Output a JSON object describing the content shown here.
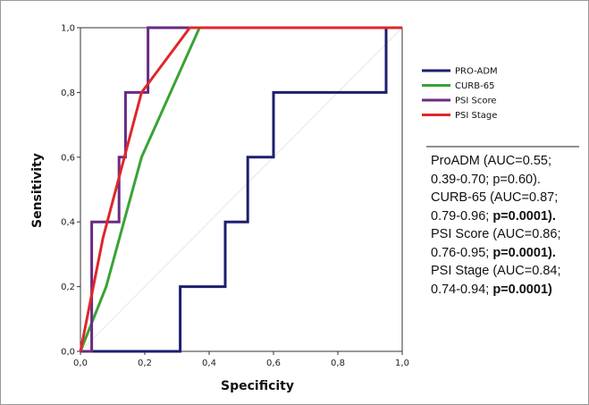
{
  "chart_data": {
    "type": "line",
    "xlabel": "Specificity",
    "ylabel": "Sensitivity",
    "xlim": [
      0,
      1
    ],
    "ylim": [
      0,
      1
    ],
    "ticks": [
      "0,0",
      "0,2",
      "0,4",
      "0,6",
      "0,8",
      "1,0"
    ],
    "legend_position": "right",
    "series": [
      {
        "name": "PRO-ADM",
        "color": "#1c1f6e",
        "x": [
          0,
          0.31,
          0.31,
          0.45,
          0.45,
          0.52,
          0.52,
          0.6,
          0.6,
          0.62,
          0.62,
          0.95,
          0.95,
          1.0
        ],
        "y": [
          0,
          0,
          0.2,
          0.2,
          0.4,
          0.4,
          0.6,
          0.6,
          0.8,
          0.8,
          0.8,
          0.8,
          1.0,
          1.0
        ]
      },
      {
        "name": "CURB-65",
        "color": "#3aa335",
        "x": [
          0,
          0.08,
          0.19,
          0.37,
          1.0
        ],
        "y": [
          0,
          0.2,
          0.6,
          1.0,
          1.0
        ]
      },
      {
        "name": "PSI Score",
        "color": "#6a2a82",
        "x": [
          0,
          0.035,
          0.035,
          0.12,
          0.12,
          0.14,
          0.14,
          0.2,
          0.2,
          0.21,
          0.21,
          1.0
        ],
        "y": [
          0,
          0,
          0.4,
          0.4,
          0.6,
          0.6,
          0.8,
          0.8,
          0.8,
          0.8,
          1.0,
          1.0
        ]
      },
      {
        "name": "PSI Stage",
        "color": "#e0262b",
        "x": [
          0,
          0.07,
          0.19,
          0.34,
          1.0
        ],
        "y": [
          0,
          0.35,
          0.8,
          1.0,
          1.0
        ]
      }
    ]
  },
  "auc_text": {
    "lines": [
      {
        "text": "ProADM (AUC=0.55;",
        "bold": ""
      },
      {
        "text": "0.39-0.70;  p=0.60).",
        "bold": ""
      },
      {
        "text": "CURB-65 (AUC=0.87;",
        "bold": ""
      },
      {
        "text": "0.79-0.96; ",
        "bold": "p=0.0001)."
      },
      {
        "text": "PSI Score (AUC=0.86;",
        "bold": ""
      },
      {
        "text": "0.76-0.95; ",
        "bold": "p=0.0001)."
      },
      {
        "text": "PSI Stage (AUC=0.84;",
        "bold": ""
      },
      {
        "text": "0.74-0.94; ",
        "bold": "p=0.0001)"
      }
    ]
  }
}
